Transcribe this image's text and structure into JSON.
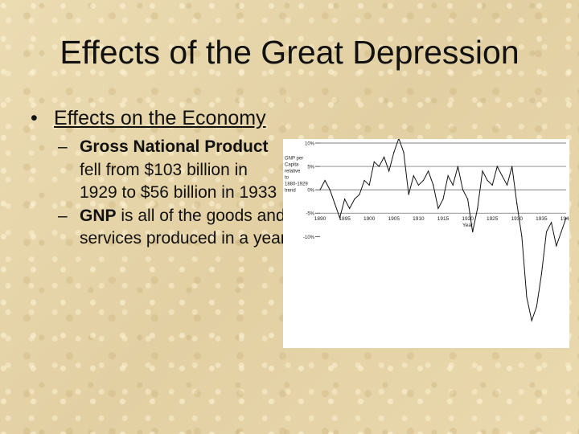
{
  "slide": {
    "title": "Effects of the Great Depression",
    "bullet_char": "•",
    "dash_char": "–",
    "main_bullet": "Effects on the Economy",
    "sub_bullets": [
      {
        "bold": "Gross National Product",
        "rest": " fell from $103 billion in 1929 to $56 billion in 1933"
      },
      {
        "bold": "GNP",
        "rest": " is all of the goods and services produced in a year"
      }
    ]
  },
  "chart_data": {
    "type": "line",
    "ylabel": "GNP per Capita relative to 1880-1929 trend",
    "xlabel": "Year",
    "y_tick_labels": [
      "10%",
      "5%",
      "0%",
      "-5%",
      "-10%"
    ],
    "y_ticks": [
      10,
      5,
      0,
      -5,
      -10
    ],
    "x_tick_labels": [
      "1890",
      "1895",
      "1900",
      "1905",
      "1910",
      "1915",
      "1920",
      "1925",
      "1930",
      "1935",
      "1940"
    ],
    "x_ticks": [
      1890,
      1895,
      1900,
      1905,
      1910,
      1915,
      1920,
      1925,
      1930,
      1935,
      1940
    ],
    "xlim": [
      1890,
      1940
    ],
    "ylim": [
      -33,
      10
    ],
    "grid": false,
    "reference_lines": [
      5,
      0,
      -5
    ],
    "line_color": "#111111",
    "series": [
      {
        "x": [
          1890,
          1891,
          1892,
          1893,
          1894,
          1895,
          1896,
          1897,
          1898,
          1899,
          1900,
          1901,
          1902,
          1903,
          1904,
          1905,
          1906,
          1907,
          1908,
          1909,
          1910,
          1911,
          1912,
          1913,
          1914,
          1915,
          1916,
          1917,
          1918,
          1919,
          1920,
          1921,
          1922,
          1923,
          1924,
          1925,
          1926,
          1927,
          1928,
          1929,
          1930,
          1931,
          1932,
          1933,
          1934,
          1935,
          1936,
          1937,
          1938,
          1939,
          1940
        ],
        "values": [
          0,
          2,
          0,
          -3,
          -6,
          -2,
          -4,
          -2,
          -1,
          2,
          1,
          6,
          5,
          7,
          4,
          8,
          11,
          8,
          -1,
          3,
          1,
          2,
          4,
          1,
          -4,
          -2,
          3,
          1,
          5,
          0,
          -2,
          -9,
          -4,
          4,
          2,
          1,
          5,
          3,
          1,
          5,
          -3,
          -10,
          -23,
          -28,
          -25,
          -18,
          -9,
          -7,
          -12,
          -9,
          -6
        ]
      }
    ]
  }
}
